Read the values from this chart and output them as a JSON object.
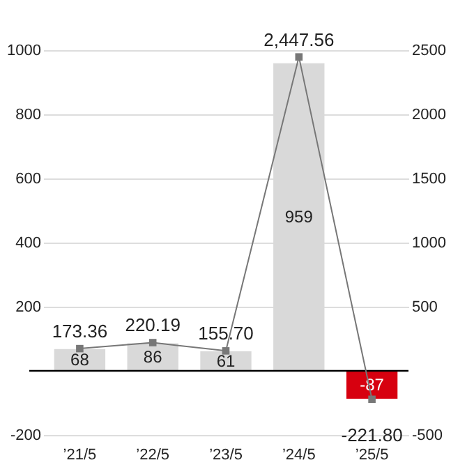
{
  "chart_data": {
    "type": "bar",
    "categories": [
      "’21/5",
      "’22/5",
      "’23/5",
      "’24/5",
      "’25/5"
    ],
    "series": [
      {
        "colors": [
          "#d9d9d9",
          "#d9d9d9",
          "#d9d9d9",
          "#d9d9d9",
          "#d7000f"
        ],
        "values": [
          68,
          86,
          61,
          959,
          -87
        ]
      },
      {
        "type": "line",
        "axis": "y2",
        "color": "#777777",
        "marker": "square",
        "values": [
          173.36,
          220.19,
          155.7,
          2447.56,
          -221.8
        ],
        "value_labels": [
          "173.36",
          "220.19",
          "155.70",
          "2,447.56",
          "-221.80"
        ]
      }
    ],
    "data_labels": true,
    "ylim": [
      -200,
      1000
    ],
    "yticks": [
      -200,
      200,
      400,
      600,
      800,
      1000
    ],
    "y2lim": [
      -500,
      2500
    ],
    "y2ticks": [
      -500,
      500,
      1000,
      1500,
      2000,
      2500
    ],
    "grid": "y",
    "ref_lines": [
      {
        "axis": "y",
        "value": 0,
        "color": "#000000"
      }
    ]
  }
}
